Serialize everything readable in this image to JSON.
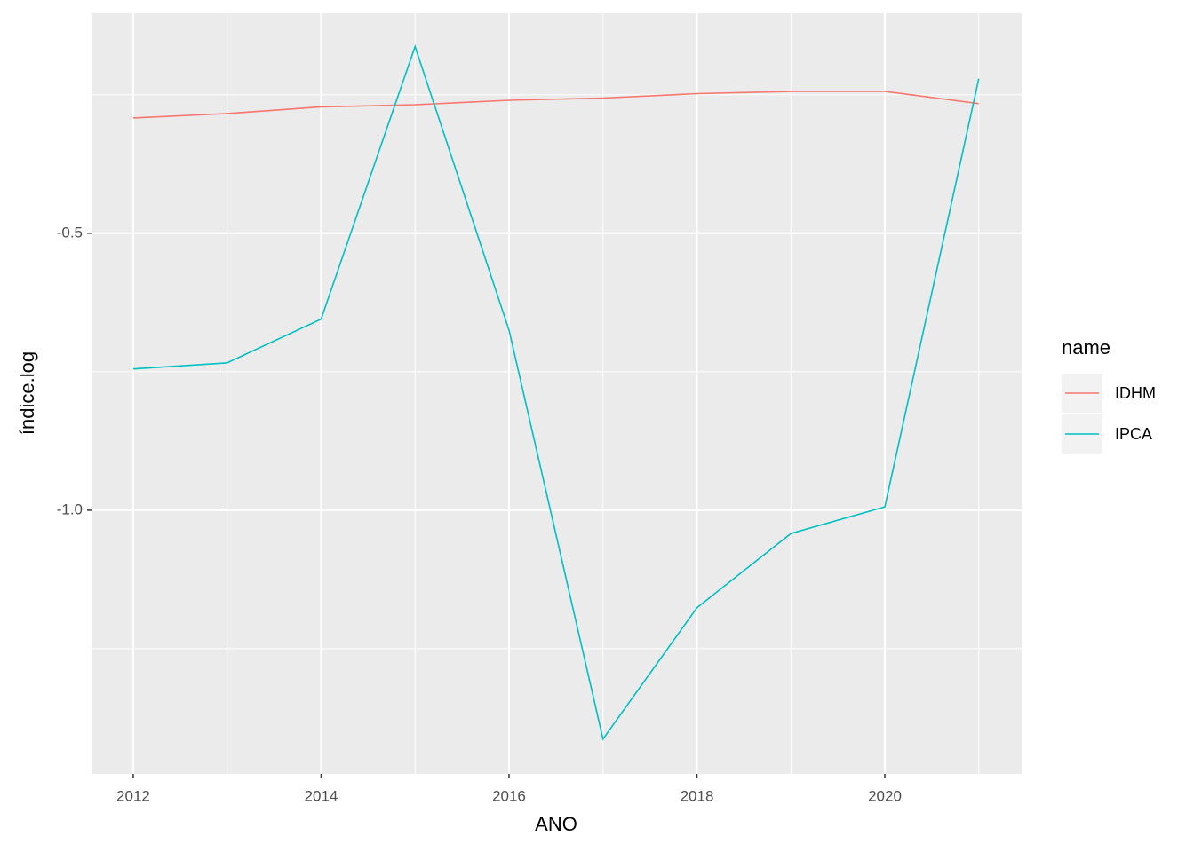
{
  "chart_data": {
    "type": "line",
    "x_label": "ANO",
    "y_label": "índice.log",
    "legend_title": "name",
    "x": [
      2012,
      2013,
      2014,
      2015,
      2016,
      2017,
      2018,
      2019,
      2020,
      2021
    ],
    "series": [
      {
        "name": "IDHM",
        "color": "#F8766D",
        "values": [
          -0.292,
          -0.284,
          -0.272,
          -0.268,
          -0.26,
          -0.256,
          -0.248,
          -0.244,
          -0.244,
          -0.266
        ]
      },
      {
        "name": "IPCA",
        "color": "#00BFC4",
        "values": [
          -0.745,
          -0.734,
          -0.655,
          -0.163,
          -0.675,
          -1.413,
          -1.176,
          -1.042,
          -0.994,
          -0.221
        ]
      }
    ],
    "xlim": [
      2011.556,
      2021.456
    ],
    "ylim": [
      -1.476,
      -0.103
    ],
    "xticks": [
      2012,
      2014,
      2016,
      2018,
      2020
    ],
    "yticks": [
      {
        "value": -1.0,
        "label": "-1.0"
      },
      {
        "value": -0.5,
        "label": "-0.5"
      }
    ],
    "grid": true,
    "legend_position": "right"
  }
}
